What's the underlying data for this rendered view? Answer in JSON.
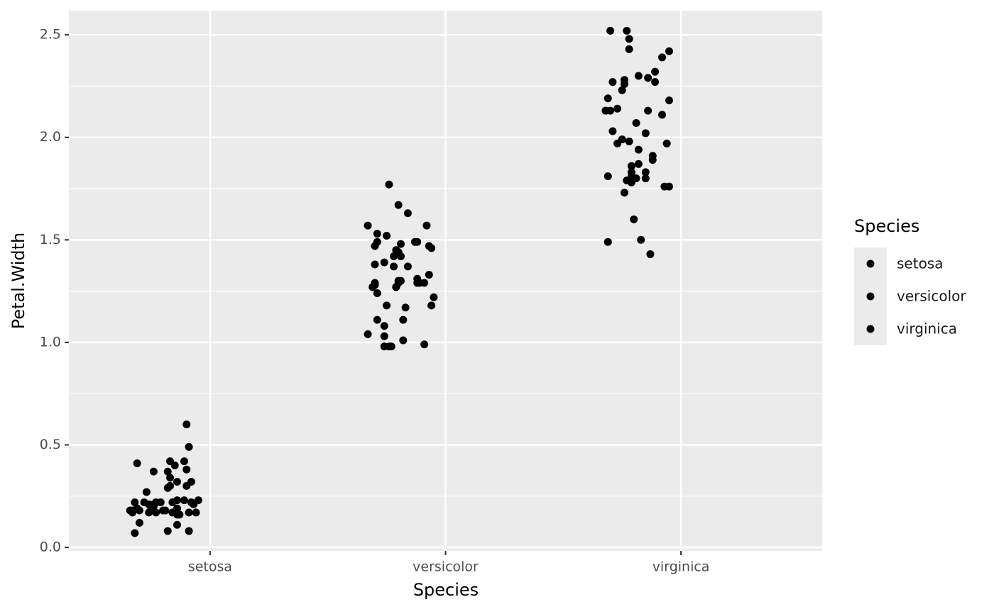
{
  "chart_data": {
    "type": "scatter",
    "x_label": "Species",
    "y_label": "Petal.Width",
    "legend_title": "Species",
    "grid": true,
    "xlim": [
      0.4,
      3.6
    ],
    "ylim": [
      -0.017,
      2.618
    ],
    "xticks": [
      {
        "value": 1,
        "label": "setosa"
      },
      {
        "value": 2,
        "label": "versicolor"
      },
      {
        "value": 3,
        "label": "virginica"
      }
    ],
    "yticks": [
      {
        "value": 0,
        "label": "0.0"
      },
      0.5,
      {
        "value": 1,
        "label": "1.0"
      },
      1.5,
      {
        "value": 2,
        "label": "2.0"
      },
      2.5
    ],
    "series": [
      {
        "name": "setosa",
        "color": "#000000",
        "x": [
          0.9,
          0.91,
          0.69,
          0.89,
          0.76,
          0.83,
          0.85,
          0.82,
          0.9,
          0.83,
          0.92,
          0.73,
          0.82,
          0.83,
          0.9,
          0.86,
          0.68,
          0.72,
          0.74,
          0.76,
          0.77,
          0.8,
          0.84,
          0.86,
          0.89,
          0.93,
          0.95,
          0.67,
          0.69,
          0.75,
          0.81,
          0.84,
          0.86,
          0.94,
          0.67,
          0.7,
          0.77,
          0.86,
          0.91,
          0.7,
          0.86,
          0.82,
          0.91,
          0.68,
          0.92,
          0.76,
          0.66,
          0.87,
          0.74,
          0.79
        ],
        "values": [
          0.6,
          0.49,
          0.41,
          0.42,
          0.37,
          0.42,
          0.4,
          0.37,
          0.38,
          0.34,
          0.32,
          0.27,
          0.29,
          0.3,
          0.3,
          0.32,
          0.22,
          0.22,
          0.21,
          0.21,
          0.22,
          0.18,
          0.22,
          0.23,
          0.23,
          0.21,
          0.23,
          0.18,
          0.19,
          0.19,
          0.18,
          0.17,
          0.19,
          0.17,
          0.17,
          0.18,
          0.17,
          0.16,
          0.17,
          0.12,
          0.11,
          0.08,
          0.08,
          0.07,
          0.22,
          0.2,
          0.18,
          0.16,
          0.17,
          0.22
        ]
      },
      {
        "name": "versicolor",
        "color": "#000000",
        "x": [
          1.76,
          1.8,
          1.84,
          1.67,
          1.92,
          1.71,
          1.75,
          1.7,
          1.71,
          1.81,
          1.88,
          1.87,
          1.93,
          1.94,
          1.79,
          1.8,
          1.81,
          1.78,
          1.7,
          1.74,
          1.78,
          1.84,
          1.8,
          1.8,
          1.79,
          1.93,
          1.88,
          1.91,
          1.88,
          1.69,
          1.7,
          1.71,
          1.95,
          1.94,
          1.75,
          1.83,
          1.71,
          1.82,
          1.67,
          1.74,
          1.74,
          1.82,
          1.91,
          1.74,
          1.76,
          1.77,
          1.81,
          1.89,
          1.7,
          1.79
        ],
        "values": [
          1.77,
          1.67,
          1.63,
          1.57,
          1.57,
          1.53,
          1.52,
          1.47,
          1.49,
          1.48,
          1.49,
          1.49,
          1.47,
          1.46,
          1.45,
          1.44,
          1.42,
          1.42,
          1.38,
          1.39,
          1.37,
          1.37,
          1.3,
          1.29,
          1.27,
          1.33,
          1.31,
          1.29,
          1.29,
          1.27,
          1.28,
          1.24,
          1.22,
          1.18,
          1.18,
          1.17,
          1.11,
          1.11,
          1.04,
          1.08,
          1.03,
          1.01,
          0.99,
          0.98,
          0.98,
          0.98,
          1.3,
          1.29,
          1.29,
          1.27
        ]
      },
      {
        "name": "virginica",
        "color": "#000000",
        "x": [
          2.7,
          2.77,
          2.78,
          2.78,
          2.95,
          2.92,
          2.71,
          2.76,
          2.82,
          2.89,
          2.86,
          2.89,
          2.76,
          2.75,
          2.95,
          2.69,
          2.68,
          2.7,
          2.73,
          2.86,
          2.92,
          2.81,
          2.71,
          2.85,
          2.75,
          2.73,
          2.78,
          2.94,
          2.82,
          2.88,
          2.88,
          2.79,
          2.82,
          2.85,
          2.79,
          2.79,
          2.77,
          2.81,
          2.85,
          2.69,
          2.79,
          2.93,
          2.95,
          2.76,
          2.8,
          2.69,
          2.83,
          2.87,
          2.76,
          2.68
        ],
        "values": [
          2.52,
          2.52,
          2.48,
          2.43,
          2.42,
          2.39,
          2.27,
          2.28,
          2.3,
          2.32,
          2.29,
          2.27,
          2.26,
          2.23,
          2.18,
          2.19,
          2.13,
          2.13,
          2.14,
          2.13,
          2.11,
          2.07,
          2.03,
          2.02,
          1.99,
          1.97,
          1.98,
          1.97,
          1.94,
          1.91,
          1.89,
          1.86,
          1.87,
          1.83,
          1.83,
          1.81,
          1.79,
          1.8,
          1.8,
          1.81,
          1.78,
          1.76,
          1.76,
          1.73,
          1.6,
          1.49,
          1.5,
          1.43,
          2.26,
          2.13
        ]
      }
    ]
  }
}
